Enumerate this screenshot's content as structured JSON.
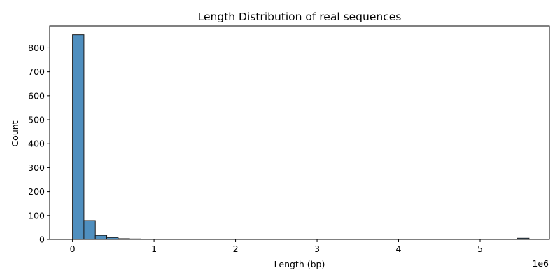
{
  "chart_data": {
    "type": "bar",
    "title": "Length Distribution of real sequences",
    "xlabel": "Length (bp)",
    "ylabel": "Count",
    "x_offset_label": "1e6",
    "xlim": [
      -0.28,
      5.85
    ],
    "ylim": [
      0,
      892
    ],
    "x_ticks": [
      0,
      1,
      2,
      3,
      4,
      5
    ],
    "y_ticks": [
      0,
      100,
      200,
      300,
      400,
      500,
      600,
      700,
      800
    ],
    "grid": false,
    "legend": "none",
    "bar_color": "#4f8fbf",
    "edge_color": "#1a1a1a",
    "bin_width": 0.14,
    "bins": [
      {
        "x0": 0.0,
        "count": 855
      },
      {
        "x0": 0.14,
        "count": 79
      },
      {
        "x0": 0.28,
        "count": 17
      },
      {
        "x0": 0.42,
        "count": 8
      },
      {
        "x0": 0.56,
        "count": 3
      },
      {
        "x0": 0.7,
        "count": 2
      },
      {
        "x0": 0.84,
        "count": 0
      },
      {
        "x0": 0.98,
        "count": 0
      },
      {
        "x0": 1.12,
        "count": 0
      },
      {
        "x0": 1.26,
        "count": 0
      },
      {
        "x0": 1.4,
        "count": 0
      },
      {
        "x0": 1.54,
        "count": 0
      },
      {
        "x0": 1.68,
        "count": 0
      },
      {
        "x0": 1.82,
        "count": 0
      },
      {
        "x0": 1.96,
        "count": 0
      },
      {
        "x0": 2.1,
        "count": 0
      },
      {
        "x0": 2.24,
        "count": 0
      },
      {
        "x0": 2.38,
        "count": 0
      },
      {
        "x0": 2.52,
        "count": 0
      },
      {
        "x0": 2.66,
        "count": 0
      },
      {
        "x0": 2.8,
        "count": 0
      },
      {
        "x0": 2.94,
        "count": 0
      },
      {
        "x0": 3.08,
        "count": 0
      },
      {
        "x0": 3.22,
        "count": 0
      },
      {
        "x0": 3.36,
        "count": 0
      },
      {
        "x0": 3.5,
        "count": 0
      },
      {
        "x0": 3.64,
        "count": 0
      },
      {
        "x0": 3.78,
        "count": 0
      },
      {
        "x0": 3.92,
        "count": 0
      },
      {
        "x0": 4.06,
        "count": 0
      },
      {
        "x0": 4.2,
        "count": 0
      },
      {
        "x0": 4.34,
        "count": 0
      },
      {
        "x0": 4.48,
        "count": 0
      },
      {
        "x0": 4.62,
        "count": 0
      },
      {
        "x0": 4.76,
        "count": 0
      },
      {
        "x0": 4.9,
        "count": 0
      },
      {
        "x0": 5.04,
        "count": 0
      },
      {
        "x0": 5.18,
        "count": 0
      },
      {
        "x0": 5.32,
        "count": 0
      },
      {
        "x0": 5.46,
        "count": 5
      }
    ]
  }
}
